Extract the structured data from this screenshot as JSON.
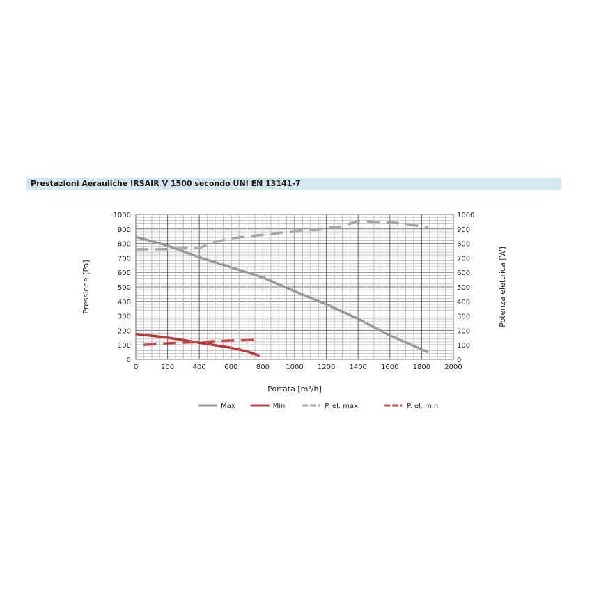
{
  "header": {
    "title": "Prestazioni Aerauliche IRSAIR V 1500 secondo UNI EN 13141-7"
  },
  "chart_data": {
    "type": "line",
    "title": "",
    "xlabel": "Portata [m³/h]",
    "ylabel": "Pressione [Pa]",
    "y2label": "Potenza elettrica [W]",
    "xlim": [
      0,
      2000
    ],
    "ylim": [
      0,
      1000
    ],
    "y2lim": [
      0,
      1000
    ],
    "xticks": [
      0,
      200,
      400,
      600,
      800,
      1000,
      1200,
      1400,
      1600,
      1800,
      2000
    ],
    "yticks": [
      0,
      100,
      200,
      300,
      400,
      500,
      600,
      700,
      800,
      900,
      1000
    ],
    "grid": true,
    "legend_position": "bottom",
    "series": [
      {
        "name": "Max",
        "color": "#999999",
        "dash": false,
        "axis": "left",
        "points": [
          [
            0,
            845
          ],
          [
            200,
            785
          ],
          [
            400,
            705
          ],
          [
            600,
            635
          ],
          [
            800,
            565
          ],
          [
            1000,
            470
          ],
          [
            1200,
            380
          ],
          [
            1400,
            280
          ],
          [
            1600,
            165
          ],
          [
            1840,
            50
          ]
        ]
      },
      {
        "name": "Min",
        "color": "#b83c3c",
        "dash": false,
        "axis": "left",
        "points": [
          [
            0,
            175
          ],
          [
            200,
            150
          ],
          [
            400,
            115
          ],
          [
            600,
            80
          ],
          [
            700,
            55
          ],
          [
            780,
            25
          ]
        ]
      },
      {
        "name": "P. el. max",
        "color": "#a6a6a6",
        "dash": true,
        "axis": "right",
        "points": [
          [
            0,
            760
          ],
          [
            200,
            760
          ],
          [
            300,
            765
          ],
          [
            400,
            770
          ],
          [
            500,
            810
          ],
          [
            600,
            835
          ],
          [
            800,
            860
          ],
          [
            1000,
            885
          ],
          [
            1200,
            905
          ],
          [
            1300,
            920
          ],
          [
            1400,
            955
          ],
          [
            1600,
            945
          ],
          [
            1700,
            935
          ],
          [
            1840,
            910
          ]
        ]
      },
      {
        "name": "P. el. min",
        "color": "#c84545",
        "dash": true,
        "axis": "right",
        "points": [
          [
            50,
            100
          ],
          [
            200,
            110
          ],
          [
            400,
            120
          ],
          [
            600,
            130
          ],
          [
            780,
            135
          ]
        ]
      }
    ]
  }
}
